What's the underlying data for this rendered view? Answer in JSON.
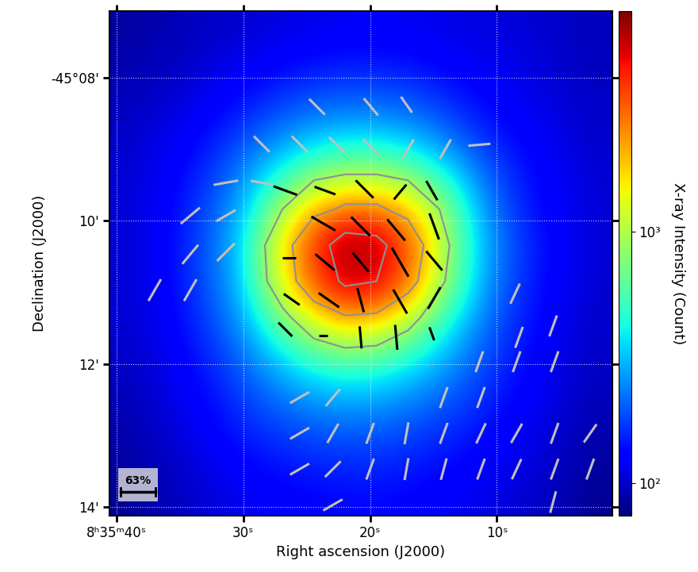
{
  "chart_data": {
    "type": "heatmap",
    "x_label": "Right ascension (J2000)",
    "y_label": "Declination (J2000)",
    "xlim": [
      40.56,
      0.9
    ],
    "ylim": [
      14.12,
      7.07
    ],
    "xticks": [
      {
        "value": 40,
        "label": "8ʰ35ᵐ40ˢ"
      },
      {
        "value": 30,
        "label": "30ˢ"
      },
      {
        "value": 20,
        "label": "20ˢ"
      },
      {
        "value": 10,
        "label": "10ˢ"
      }
    ],
    "yticks": [
      {
        "value": 8,
        "label": "-45°08'"
      },
      {
        "value": 10,
        "label": "10'"
      },
      {
        "value": 12,
        "label": "12'"
      },
      {
        "value": 14,
        "label": "14'"
      }
    ],
    "grid": true,
    "cells": [
      [
        85,
        90,
        95,
        100,
        105,
        110,
        115,
        120,
        120,
        120,
        115,
        110,
        110,
        105,
        100,
        95
      ],
      [
        90,
        95,
        100,
        110,
        120,
        130,
        140,
        145,
        145,
        140,
        130,
        120,
        115,
        110,
        100,
        95
      ],
      [
        95,
        100,
        110,
        125,
        145,
        170,
        190,
        200,
        200,
        190,
        165,
        140,
        125,
        115,
        105,
        100
      ],
      [
        100,
        110,
        125,
        150,
        190,
        240,
        290,
        320,
        320,
        290,
        230,
        175,
        140,
        125,
        110,
        100
      ],
      [
        105,
        115,
        140,
        180,
        260,
        400,
        600,
        750,
        750,
        600,
        400,
        250,
        170,
        135,
        115,
        105
      ],
      [
        105,
        120,
        150,
        210,
        340,
        800,
        1600,
        2200,
        2200,
        1600,
        800,
        330,
        190,
        140,
        120,
        105
      ],
      [
        105,
        120,
        155,
        230,
        400,
        1300,
        3500,
        6500,
        6000,
        3000,
        1000,
        380,
        210,
        150,
        120,
        105
      ],
      [
        105,
        120,
        155,
        220,
        380,
        1200,
        3000,
        5500,
        5000,
        2500,
        900,
        350,
        200,
        145,
        120,
        105
      ],
      [
        105,
        115,
        145,
        200,
        310,
        650,
        1200,
        1800,
        1600,
        1000,
        500,
        280,
        180,
        140,
        115,
        100
      ],
      [
        100,
        110,
        135,
        170,
        240,
        360,
        520,
        620,
        580,
        450,
        320,
        220,
        160,
        130,
        110,
        100
      ],
      [
        95,
        105,
        125,
        150,
        190,
        240,
        290,
        320,
        310,
        270,
        220,
        180,
        145,
        125,
        105,
        95
      ],
      [
        90,
        100,
        115,
        135,
        160,
        180,
        200,
        210,
        205,
        190,
        170,
        150,
        130,
        115,
        100,
        90
      ],
      [
        85,
        95,
        105,
        120,
        135,
        145,
        155,
        160,
        160,
        150,
        140,
        130,
        120,
        110,
        95,
        85
      ],
      [
        80,
        90,
        100,
        110,
        120,
        125,
        130,
        135,
        135,
        130,
        125,
        115,
        110,
        100,
        90,
        80
      ]
    ],
    "contour_levels": [
      800,
      2000,
      5000
    ],
    "colorbar": {
      "label": "X-ray Intensity (Count)",
      "log": true,
      "range": [
        74,
        7600
      ],
      "ticks": [
        {
          "value": 100,
          "label": "10²"
        },
        {
          "value": 1000,
          "label": "10³"
        }
      ]
    },
    "vectors": [
      {
        "color": "#000000",
        "x": [
          26.69,
          23.56,
          20.44,
          17.63,
          15.13,
          23.69,
          20.75,
          17.94,
          14.94,
          26.38,
          23.56,
          20.75,
          17.63,
          14.94,
          26.19,
          23.25,
          20.75,
          17.63,
          14.94,
          26.69,
          23.69,
          20.75,
          17.94,
          15.13
        ],
        "y": [
          9.58,
          9.58,
          9.56,
          9.6,
          9.58,
          10.04,
          10.08,
          10.13,
          10.08,
          10.52,
          10.58,
          10.58,
          10.58,
          10.56,
          11.1,
          11.11,
          11.11,
          11.13,
          11.08,
          11.52,
          11.6,
          11.63,
          11.63,
          11.58
        ],
        "angle": [
          70,
          70,
          45,
          140,
          30,
          60,
          45,
          40,
          20,
          90,
          50,
          40,
          30,
          40,
          55,
          55,
          15,
          30,
          150,
          45,
          90,
          5,
          5,
          20
        ],
        "pol": [
          45,
          40,
          45,
          35,
          40,
          50,
          48,
          50,
          50,
          25,
          45,
          45,
          60,
          45,
          35,
          45,
          45,
          50,
          45,
          35,
          15,
          40,
          45,
          25
        ]
      },
      {
        "color": "#c0c0c0",
        "x": [
          24.19,
          19.94,
          17.13,
          28.56,
          25.56,
          22.63,
          19.94,
          17.0,
          14.06,
          11.38,
          31.38,
          28.56,
          34.19,
          31.38,
          34.19,
          31.38,
          37.0,
          34.19,
          8.56,
          8.25,
          11.38,
          8.44,
          5.56,
          5.44,
          25.56,
          22.94,
          14.19,
          11.25,
          25.56,
          22.94,
          20.0,
          17.13,
          14.19,
          11.25,
          8.44,
          5.44,
          2.63,
          25.56,
          22.94,
          20.0,
          17.13,
          14.19,
          11.25,
          8.44,
          5.44,
          2.63,
          22.94,
          5.56
        ],
        "y": [
          8.41,
          8.41,
          8.38,
          8.93,
          8.93,
          8.94,
          8.97,
          9.0,
          9.0,
          8.94,
          9.47,
          9.47,
          9.93,
          9.93,
          10.47,
          10.44,
          10.97,
          10.97,
          11.02,
          11.63,
          11.97,
          11.97,
          11.47,
          11.97,
          12.47,
          12.47,
          12.47,
          12.47,
          12.97,
          12.97,
          12.97,
          12.97,
          12.97,
          12.97,
          12.97,
          12.97,
          12.97,
          13.47,
          13.47,
          13.47,
          13.47,
          13.47,
          13.47,
          13.47,
          13.47,
          13.47,
          13.97,
          13.93
        ],
        "angle": [
          45,
          40,
          35,
          45,
          45,
          45,
          45,
          150,
          150,
          95,
          100,
          80,
          130,
          120,
          140,
          135,
          150,
          150,
          155,
          160,
          160,
          160,
          160,
          160,
          120,
          140,
          160,
          160,
          120,
          150,
          160,
          170,
          160,
          155,
          150,
          160,
          145,
          120,
          135,
          160,
          170,
          165,
          160,
          155,
          160,
          160,
          120,
          165
        ],
        "pol": [
          40,
          40,
          35,
          40,
          40,
          40,
          40,
          40,
          40,
          40,
          45,
          40,
          45,
          40,
          45,
          45,
          45,
          45,
          40,
          40,
          40,
          40,
          40,
          40,
          40,
          40,
          40,
          40,
          40,
          40,
          40,
          40,
          40,
          40,
          40,
          40,
          40,
          40,
          40,
          40,
          40,
          40,
          40,
          40,
          40,
          40,
          40,
          40
        ]
      }
    ],
    "scale_bar": {
      "value": 63,
      "label": "63%"
    }
  }
}
